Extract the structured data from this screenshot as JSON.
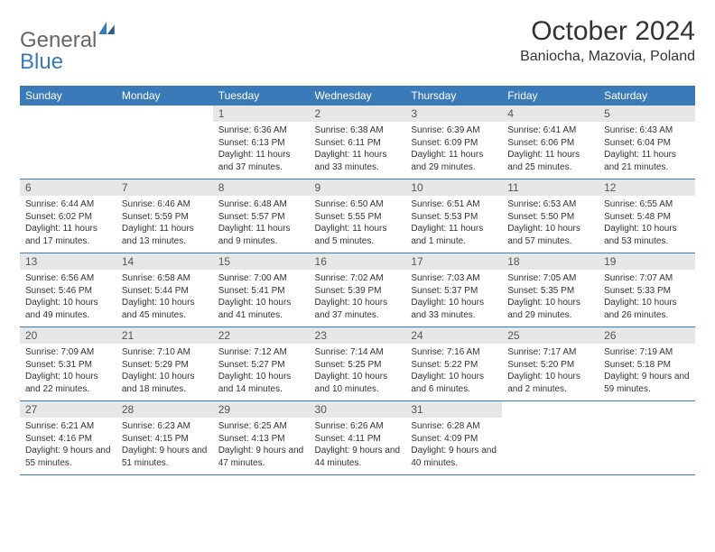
{
  "brand": {
    "part1": "General",
    "part2": "Blue"
  },
  "colors": {
    "brand_blue": "#3a7ab8",
    "header_text": "#333333",
    "daynum_bg": "#e7e7e7",
    "daynum_text": "#555555",
    "body_text": "#333333",
    "row_border": "#3a7ab8",
    "background": "#ffffff"
  },
  "title": "October 2024",
  "location": "Baniocha, Mazovia, Poland",
  "weekdays": [
    "Sunday",
    "Monday",
    "Tuesday",
    "Wednesday",
    "Thursday",
    "Friday",
    "Saturday"
  ],
  "weeks": [
    [
      {
        "day": "",
        "sunrise": "",
        "sunset": "",
        "daylight": ""
      },
      {
        "day": "",
        "sunrise": "",
        "sunset": "",
        "daylight": ""
      },
      {
        "day": "1",
        "sunrise": "Sunrise: 6:36 AM",
        "sunset": "Sunset: 6:13 PM",
        "daylight": "Daylight: 11 hours and 37 minutes."
      },
      {
        "day": "2",
        "sunrise": "Sunrise: 6:38 AM",
        "sunset": "Sunset: 6:11 PM",
        "daylight": "Daylight: 11 hours and 33 minutes."
      },
      {
        "day": "3",
        "sunrise": "Sunrise: 6:39 AM",
        "sunset": "Sunset: 6:09 PM",
        "daylight": "Daylight: 11 hours and 29 minutes."
      },
      {
        "day": "4",
        "sunrise": "Sunrise: 6:41 AM",
        "sunset": "Sunset: 6:06 PM",
        "daylight": "Daylight: 11 hours and 25 minutes."
      },
      {
        "day": "5",
        "sunrise": "Sunrise: 6:43 AM",
        "sunset": "Sunset: 6:04 PM",
        "daylight": "Daylight: 11 hours and 21 minutes."
      }
    ],
    [
      {
        "day": "6",
        "sunrise": "Sunrise: 6:44 AM",
        "sunset": "Sunset: 6:02 PM",
        "daylight": "Daylight: 11 hours and 17 minutes."
      },
      {
        "day": "7",
        "sunrise": "Sunrise: 6:46 AM",
        "sunset": "Sunset: 5:59 PM",
        "daylight": "Daylight: 11 hours and 13 minutes."
      },
      {
        "day": "8",
        "sunrise": "Sunrise: 6:48 AM",
        "sunset": "Sunset: 5:57 PM",
        "daylight": "Daylight: 11 hours and 9 minutes."
      },
      {
        "day": "9",
        "sunrise": "Sunrise: 6:50 AM",
        "sunset": "Sunset: 5:55 PM",
        "daylight": "Daylight: 11 hours and 5 minutes."
      },
      {
        "day": "10",
        "sunrise": "Sunrise: 6:51 AM",
        "sunset": "Sunset: 5:53 PM",
        "daylight": "Daylight: 11 hours and 1 minute."
      },
      {
        "day": "11",
        "sunrise": "Sunrise: 6:53 AM",
        "sunset": "Sunset: 5:50 PM",
        "daylight": "Daylight: 10 hours and 57 minutes."
      },
      {
        "day": "12",
        "sunrise": "Sunrise: 6:55 AM",
        "sunset": "Sunset: 5:48 PM",
        "daylight": "Daylight: 10 hours and 53 minutes."
      }
    ],
    [
      {
        "day": "13",
        "sunrise": "Sunrise: 6:56 AM",
        "sunset": "Sunset: 5:46 PM",
        "daylight": "Daylight: 10 hours and 49 minutes."
      },
      {
        "day": "14",
        "sunrise": "Sunrise: 6:58 AM",
        "sunset": "Sunset: 5:44 PM",
        "daylight": "Daylight: 10 hours and 45 minutes."
      },
      {
        "day": "15",
        "sunrise": "Sunrise: 7:00 AM",
        "sunset": "Sunset: 5:41 PM",
        "daylight": "Daylight: 10 hours and 41 minutes."
      },
      {
        "day": "16",
        "sunrise": "Sunrise: 7:02 AM",
        "sunset": "Sunset: 5:39 PM",
        "daylight": "Daylight: 10 hours and 37 minutes."
      },
      {
        "day": "17",
        "sunrise": "Sunrise: 7:03 AM",
        "sunset": "Sunset: 5:37 PM",
        "daylight": "Daylight: 10 hours and 33 minutes."
      },
      {
        "day": "18",
        "sunrise": "Sunrise: 7:05 AM",
        "sunset": "Sunset: 5:35 PM",
        "daylight": "Daylight: 10 hours and 29 minutes."
      },
      {
        "day": "19",
        "sunrise": "Sunrise: 7:07 AM",
        "sunset": "Sunset: 5:33 PM",
        "daylight": "Daylight: 10 hours and 26 minutes."
      }
    ],
    [
      {
        "day": "20",
        "sunrise": "Sunrise: 7:09 AM",
        "sunset": "Sunset: 5:31 PM",
        "daylight": "Daylight: 10 hours and 22 minutes."
      },
      {
        "day": "21",
        "sunrise": "Sunrise: 7:10 AM",
        "sunset": "Sunset: 5:29 PM",
        "daylight": "Daylight: 10 hours and 18 minutes."
      },
      {
        "day": "22",
        "sunrise": "Sunrise: 7:12 AM",
        "sunset": "Sunset: 5:27 PM",
        "daylight": "Daylight: 10 hours and 14 minutes."
      },
      {
        "day": "23",
        "sunrise": "Sunrise: 7:14 AM",
        "sunset": "Sunset: 5:25 PM",
        "daylight": "Daylight: 10 hours and 10 minutes."
      },
      {
        "day": "24",
        "sunrise": "Sunrise: 7:16 AM",
        "sunset": "Sunset: 5:22 PM",
        "daylight": "Daylight: 10 hours and 6 minutes."
      },
      {
        "day": "25",
        "sunrise": "Sunrise: 7:17 AM",
        "sunset": "Sunset: 5:20 PM",
        "daylight": "Daylight: 10 hours and 2 minutes."
      },
      {
        "day": "26",
        "sunrise": "Sunrise: 7:19 AM",
        "sunset": "Sunset: 5:18 PM",
        "daylight": "Daylight: 9 hours and 59 minutes."
      }
    ],
    [
      {
        "day": "27",
        "sunrise": "Sunrise: 6:21 AM",
        "sunset": "Sunset: 4:16 PM",
        "daylight": "Daylight: 9 hours and 55 minutes."
      },
      {
        "day": "28",
        "sunrise": "Sunrise: 6:23 AM",
        "sunset": "Sunset: 4:15 PM",
        "daylight": "Daylight: 9 hours and 51 minutes."
      },
      {
        "day": "29",
        "sunrise": "Sunrise: 6:25 AM",
        "sunset": "Sunset: 4:13 PM",
        "daylight": "Daylight: 9 hours and 47 minutes."
      },
      {
        "day": "30",
        "sunrise": "Sunrise: 6:26 AM",
        "sunset": "Sunset: 4:11 PM",
        "daylight": "Daylight: 9 hours and 44 minutes."
      },
      {
        "day": "31",
        "sunrise": "Sunrise: 6:28 AM",
        "sunset": "Sunset: 4:09 PM",
        "daylight": "Daylight: 9 hours and 40 minutes."
      },
      {
        "day": "",
        "sunrise": "",
        "sunset": "",
        "daylight": ""
      },
      {
        "day": "",
        "sunrise": "",
        "sunset": "",
        "daylight": ""
      }
    ]
  ]
}
